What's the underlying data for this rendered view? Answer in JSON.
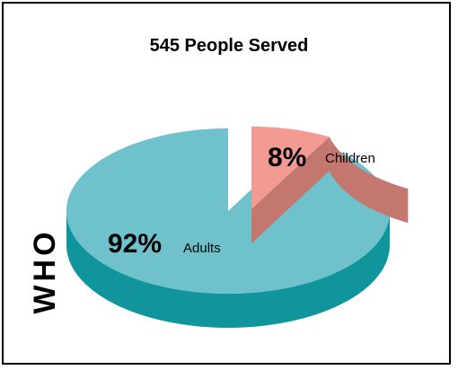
{
  "chart_data": {
    "type": "pie",
    "title": "545 People Served",
    "side_label": "WHO",
    "slices": [
      {
        "label": "Adults",
        "percent_label": "92%",
        "value": 92,
        "color": "#6fc1cc",
        "side_color": "#11959c"
      },
      {
        "label": "Children",
        "percent_label": "8%",
        "value": 8,
        "color": "#f39a93",
        "side_color": "#c4776e"
      }
    ],
    "exploded_slice": "Children",
    "style": "3d"
  }
}
